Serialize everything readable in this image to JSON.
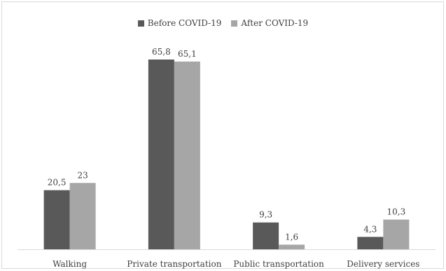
{
  "chart_data": {
    "type": "bar",
    "title": "",
    "xlabel": "",
    "ylabel": "",
    "categories": [
      "Walking",
      "Private transportation",
      "Public transportation",
      "Delivery services"
    ],
    "series": [
      {
        "name": "Before COVID-19",
        "color": "#595959",
        "values": [
          20.5,
          65.8,
          9.3,
          4.3
        ],
        "labels": [
          "20,5",
          "65,8",
          "9,3",
          "4,3"
        ]
      },
      {
        "name": "After COVID-19",
        "color": "#a6a6a6",
        "values": [
          23,
          65.1,
          1.6,
          10.3
        ],
        "labels": [
          "23",
          "65,1",
          "1,6",
          "10,3"
        ]
      }
    ],
    "ylim": [
      0,
      70
    ],
    "grid": false,
    "legend_position": "top"
  }
}
